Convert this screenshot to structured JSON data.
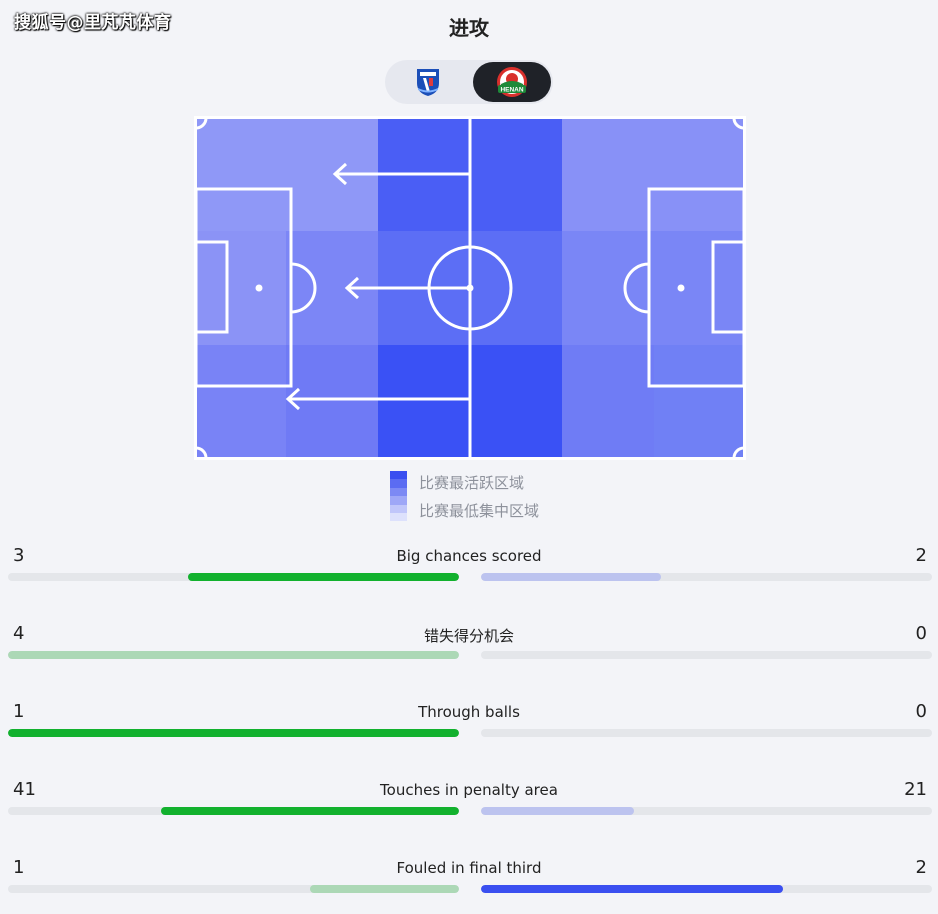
{
  "watermark": "搜狐号@里芃芃体育",
  "title": "进攻",
  "teams": {
    "home": {
      "logo_icon": "shanghai-shenhua-crest-icon"
    },
    "away": {
      "logo_icon": "henan-crest-icon",
      "logo_text": "HENAN",
      "selected": true
    }
  },
  "heatmap": {
    "grid": [
      [
        "#8f98f7",
        "#8f98f7",
        "#4a5ef5",
        "#4a5ef5",
        "#8891f7",
        "#8891f7"
      ],
      [
        "#8b93f6",
        "#7c86f6",
        "#5c6ef5",
        "#5c6ef5",
        "#7a86f6",
        "#7a86f6"
      ],
      [
        "#7983f6",
        "#6f7af5",
        "#3a51f5",
        "#3a51f5",
        "#6f7cf5",
        "#7080f5"
      ]
    ],
    "attack_direction": "left",
    "line_color": "#ffffff"
  },
  "legend": {
    "high_label": "比赛最活跃区域",
    "low_label": "比赛最低集中区域",
    "scale": [
      "#3a4ff0",
      "#5b6cf2",
      "#7c89f4",
      "#9ea7f7",
      "#c0c6fa",
      "#dde1fc"
    ]
  },
  "colors": {
    "home_strong": "#12b12e",
    "home_light": "#acd8b6",
    "away_strong": "#3a4ff0",
    "away_light": "#bcc3ef",
    "track": "#e4e6ea"
  },
  "stats": [
    {
      "label": "Big chances scored",
      "home": "3",
      "away": "2",
      "home_ratio": 0.6,
      "away_ratio": 0.4,
      "home_style": "strong",
      "away_style": "light"
    },
    {
      "label": "错失得分机会",
      "home": "4",
      "away": "0",
      "home_ratio": 1.0,
      "away_ratio": 0.0,
      "home_style": "light",
      "away_style": "light"
    },
    {
      "label": "Through balls",
      "home": "1",
      "away": "0",
      "home_ratio": 1.0,
      "away_ratio": 0.0,
      "home_style": "strong",
      "away_style": "light"
    },
    {
      "label": "Touches in penalty area",
      "home": "41",
      "away": "21",
      "home_ratio": 0.66,
      "away_ratio": 0.34,
      "home_style": "strong",
      "away_style": "light"
    },
    {
      "label": "Fouled in final third",
      "home": "1",
      "away": "2",
      "home_ratio": 0.33,
      "away_ratio": 0.67,
      "home_style": "light",
      "away_style": "strong"
    }
  ]
}
